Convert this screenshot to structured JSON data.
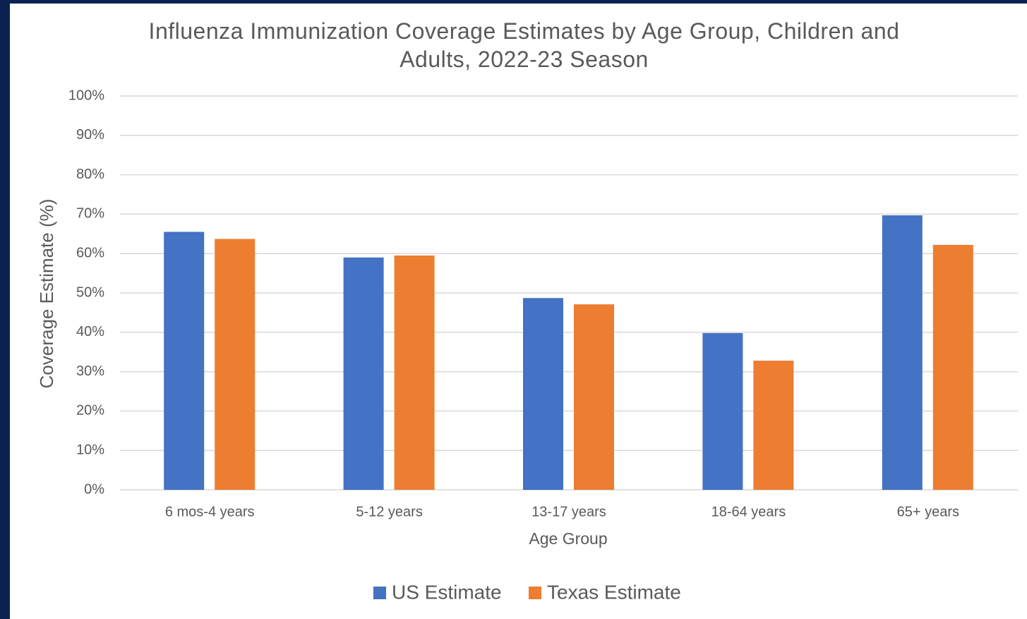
{
  "chart_data": {
    "type": "bar",
    "title": "Influenza Immunization Coverage Estimates by Age Group, Children and Adults, 2022-23 Season",
    "x_label": "Age Group",
    "y_label": "Coverage Estimate (%)",
    "categories": [
      "6 mos-4 years",
      "5-12 years",
      "13-17 years",
      "18-64 years",
      "65+ years"
    ],
    "series": [
      {
        "name": "US Estimate",
        "color": "#4472c4",
        "values": [
          65.5,
          59.0,
          48.7,
          39.8,
          69.7
        ]
      },
      {
        "name": "Texas Estimate",
        "color": "#ed7d31",
        "values": [
          63.7,
          59.5,
          47.1,
          32.8,
          62.2
        ]
      }
    ],
    "ylim": [
      0,
      100
    ],
    "yticks": [
      {
        "value": 0,
        "label": "0%"
      },
      {
        "value": 10,
        "label": "10%"
      },
      {
        "value": 20,
        "label": "20%"
      },
      {
        "value": 30,
        "label": "30%"
      },
      {
        "value": 40,
        "label": "40%"
      },
      {
        "value": 50,
        "label": "50%"
      },
      {
        "value": 60,
        "label": "60%"
      },
      {
        "value": 70,
        "label": "70%"
      },
      {
        "value": 80,
        "label": "80%"
      },
      {
        "value": 90,
        "label": "90%"
      },
      {
        "value": 100,
        "label": "100%"
      }
    ],
    "grid": true,
    "legend": "bottom"
  }
}
